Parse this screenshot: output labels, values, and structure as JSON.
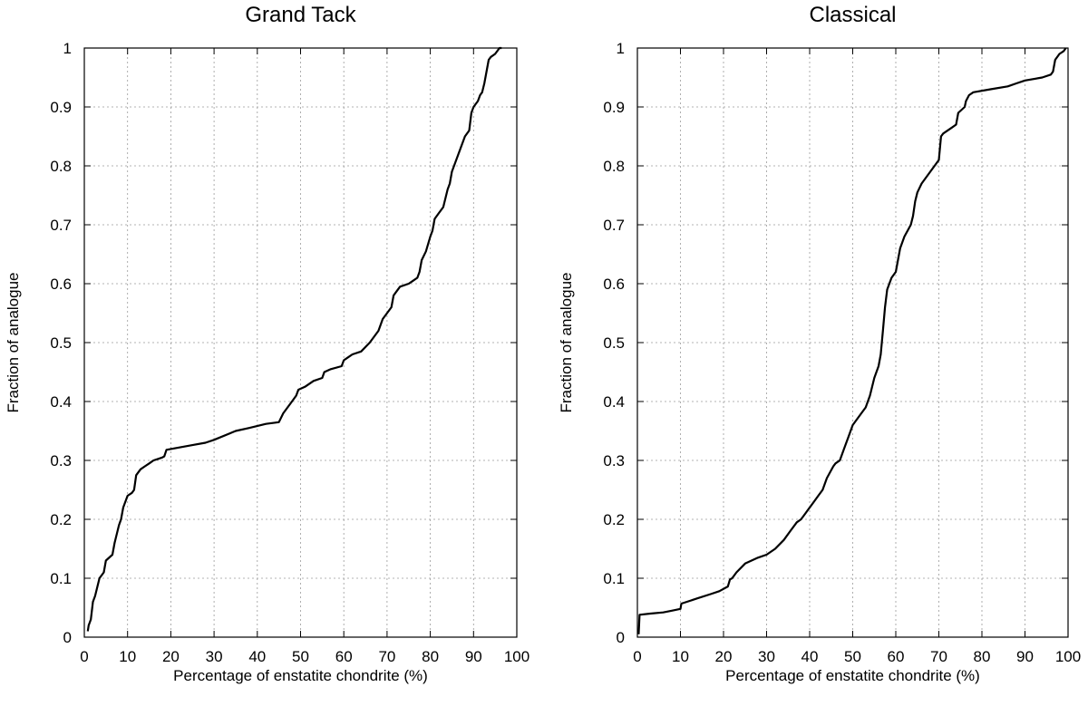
{
  "chart_data": [
    {
      "type": "line",
      "title": "Grand Tack",
      "xlabel": "Percentage of enstatite chondrite (%)",
      "ylabel": "Fraction of analogue",
      "xlim": [
        0,
        100
      ],
      "ylim": [
        0,
        1
      ],
      "xticks": [
        "0",
        "10",
        "20",
        "30",
        "40",
        "50",
        "60",
        "70",
        "80",
        "90",
        "100"
      ],
      "yticks": [
        "0",
        "0.1",
        "0.2",
        "0.3",
        "0.4",
        "0.5",
        "0.6",
        "0.7",
        "0.8",
        "0.9",
        "1"
      ],
      "grid": true,
      "series": [
        {
          "color": "#000000",
          "x": [
            0.8,
            1.0,
            1.5,
            2.0,
            2.5,
            3.5,
            4.5,
            5.0,
            6.5,
            7.0,
            8.0,
            8.5,
            9.0,
            10.0,
            11.0,
            11.5,
            12.0,
            13.0,
            14.0,
            15.0,
            16.0,
            18.0,
            18.5,
            19.0,
            22.0,
            25.0,
            28.0,
            30.0,
            35.0,
            38.0,
            42.0,
            45.0,
            46.0,
            47.0,
            48.0,
            49.0,
            49.5,
            51.0,
            53.0,
            55.0,
            55.5,
            57.0,
            59.5,
            60.0,
            62.0,
            64.0,
            66.0,
            68.0,
            69.0,
            71.0,
            71.5,
            72.0,
            73.0,
            75.0,
            76.0,
            77.0,
            77.5,
            78.0,
            79.0,
            80.0,
            80.5,
            81.0,
            82.0,
            83.0,
            84.0,
            84.5,
            85.0,
            86.0,
            87.0,
            88.0,
            89.0,
            89.5,
            90.0,
            91.0,
            91.5,
            92.0,
            92.5,
            93.0,
            93.5,
            94.0,
            95.0,
            96.0,
            96.5
          ],
          "y": [
            0.01,
            0.02,
            0.03,
            0.06,
            0.07,
            0.1,
            0.11,
            0.13,
            0.14,
            0.16,
            0.19,
            0.2,
            0.22,
            0.24,
            0.245,
            0.25,
            0.275,
            0.285,
            0.29,
            0.295,
            0.3,
            0.305,
            0.307,
            0.318,
            0.322,
            0.326,
            0.33,
            0.335,
            0.35,
            0.355,
            0.362,
            0.365,
            0.38,
            0.39,
            0.4,
            0.41,
            0.42,
            0.425,
            0.435,
            0.44,
            0.45,
            0.455,
            0.46,
            0.47,
            0.48,
            0.485,
            0.5,
            0.52,
            0.54,
            0.56,
            0.58,
            0.585,
            0.595,
            0.6,
            0.605,
            0.61,
            0.62,
            0.64,
            0.655,
            0.68,
            0.69,
            0.71,
            0.72,
            0.73,
            0.76,
            0.77,
            0.79,
            0.81,
            0.83,
            0.85,
            0.86,
            0.89,
            0.9,
            0.91,
            0.92,
            0.925,
            0.94,
            0.96,
            0.98,
            0.985,
            0.99,
            1.0,
            1.0
          ]
        }
      ]
    },
    {
      "type": "line",
      "title": "Classical",
      "xlabel": "Percentage of enstatite chondrite (%)",
      "ylabel": "Fraction of analogue",
      "xlim": [
        0,
        100
      ],
      "ylim": [
        0,
        1
      ],
      "xticks": [
        "0",
        "10",
        "20",
        "30",
        "40",
        "50",
        "60",
        "70",
        "80",
        "90",
        "100"
      ],
      "yticks": [
        "0",
        "0.1",
        "0.2",
        "0.3",
        "0.4",
        "0.5",
        "0.6",
        "0.7",
        "0.8",
        "0.9",
        "1"
      ],
      "grid": true,
      "series": [
        {
          "color": "#000000",
          "x": [
            0.3,
            0.5,
            3.0,
            6.0,
            8.0,
            10.0,
            10.2,
            14.0,
            17.0,
            19.0,
            21.0,
            21.5,
            22.0,
            23.0,
            25.0,
            28.0,
            30.0,
            32.0,
            34.0,
            35.5,
            37.0,
            38.0,
            39.0,
            41.0,
            42.0,
            43.0,
            44.0,
            45.5,
            46.0,
            47.0,
            48.0,
            49.0,
            50.0,
            52.0,
            53.0,
            54.0,
            55.0,
            56.0,
            56.5,
            57.0,
            57.5,
            58.0,
            59.0,
            60.0,
            60.5,
            61.0,
            62.0,
            63.5,
            64.0,
            64.5,
            65.0,
            66.0,
            68.0,
            70.0,
            70.5,
            71.0,
            73.0,
            74.0,
            74.5,
            76.0,
            76.3,
            77.0,
            78.0,
            82.0,
            86.0,
            88.0,
            90.0,
            94.0,
            96.0,
            96.5,
            97.0,
            98.0,
            99.0,
            99.5
          ],
          "y": [
            0.005,
            0.038,
            0.04,
            0.042,
            0.045,
            0.048,
            0.057,
            0.066,
            0.073,
            0.078,
            0.086,
            0.098,
            0.1,
            0.11,
            0.125,
            0.135,
            0.14,
            0.15,
            0.165,
            0.18,
            0.195,
            0.2,
            0.21,
            0.23,
            0.24,
            0.25,
            0.27,
            0.29,
            0.295,
            0.3,
            0.32,
            0.34,
            0.36,
            0.38,
            0.39,
            0.41,
            0.44,
            0.46,
            0.48,
            0.52,
            0.56,
            0.59,
            0.61,
            0.62,
            0.64,
            0.66,
            0.68,
            0.7,
            0.715,
            0.74,
            0.755,
            0.77,
            0.79,
            0.81,
            0.85,
            0.855,
            0.865,
            0.87,
            0.89,
            0.9,
            0.91,
            0.92,
            0.925,
            0.93,
            0.935,
            0.94,
            0.945,
            0.95,
            0.955,
            0.96,
            0.98,
            0.99,
            0.995,
            1.0
          ]
        }
      ]
    }
  ]
}
